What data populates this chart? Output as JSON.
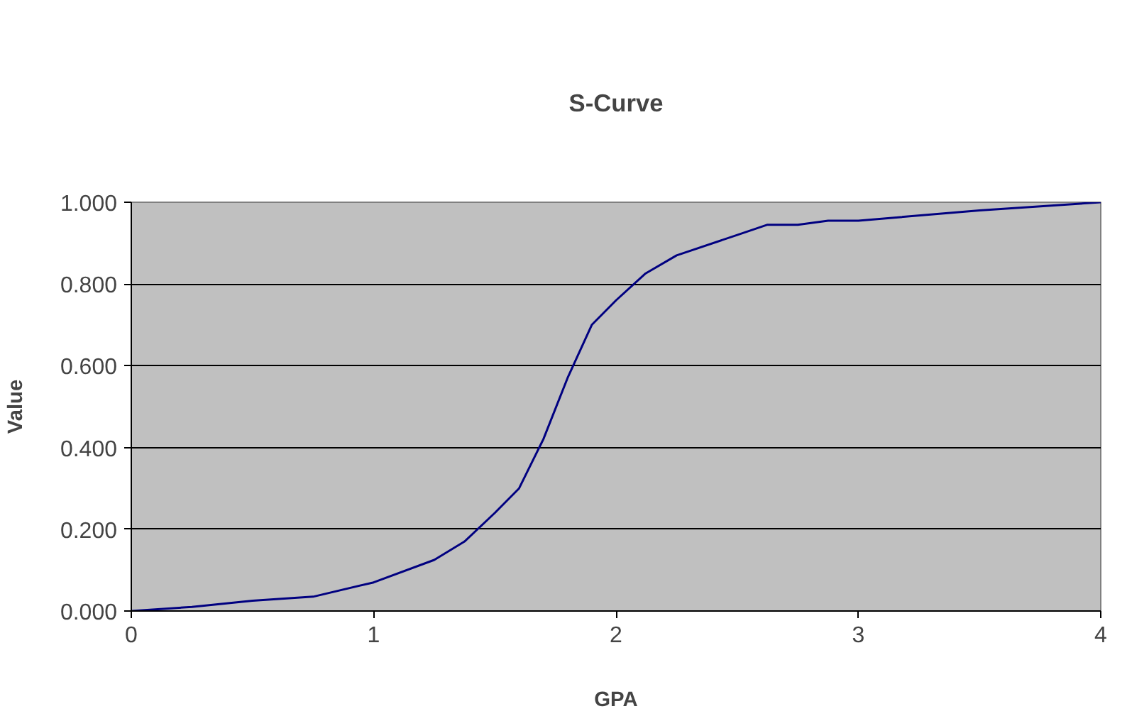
{
  "chart_data": {
    "type": "line",
    "title": "S-Curve",
    "xlabel": "GPA",
    "ylabel": "Value",
    "x": [
      0,
      0.25,
      0.5,
      0.75,
      1.0,
      1.25,
      1.375,
      1.5,
      1.6,
      1.7,
      1.8,
      1.9,
      2.0,
      2.12,
      2.25,
      2.5,
      2.625,
      2.75,
      2.875,
      3.0,
      3.5,
      4.0
    ],
    "series": [
      {
        "color": "#000080",
        "values": [
          0,
          0.01,
          0.025,
          0.035,
          0.07,
          0.125,
          0.17,
          0.24,
          0.3,
          0.42,
          0.57,
          0.7,
          0.76,
          0.825,
          0.87,
          0.92,
          0.945,
          0.945,
          0.955,
          0.955,
          0.98,
          1.0
        ]
      }
    ],
    "xlim": [
      0,
      4
    ],
    "xticks": [
      0,
      1,
      2,
      3,
      4
    ],
    "ylim": [
      0,
      1
    ],
    "yticks": [
      {
        "value": 0,
        "label": "0.000"
      },
      {
        "value": 0.2,
        "label": "0.200"
      },
      {
        "value": 0.4,
        "label": "0.400"
      },
      {
        "value": 0.6,
        "label": "0.600"
      },
      {
        "value": 0.8,
        "label": "0.800"
      },
      {
        "value": 1,
        "label": "1.000"
      }
    ],
    "grid": "y",
    "marker": "none",
    "line_style": "solid"
  }
}
